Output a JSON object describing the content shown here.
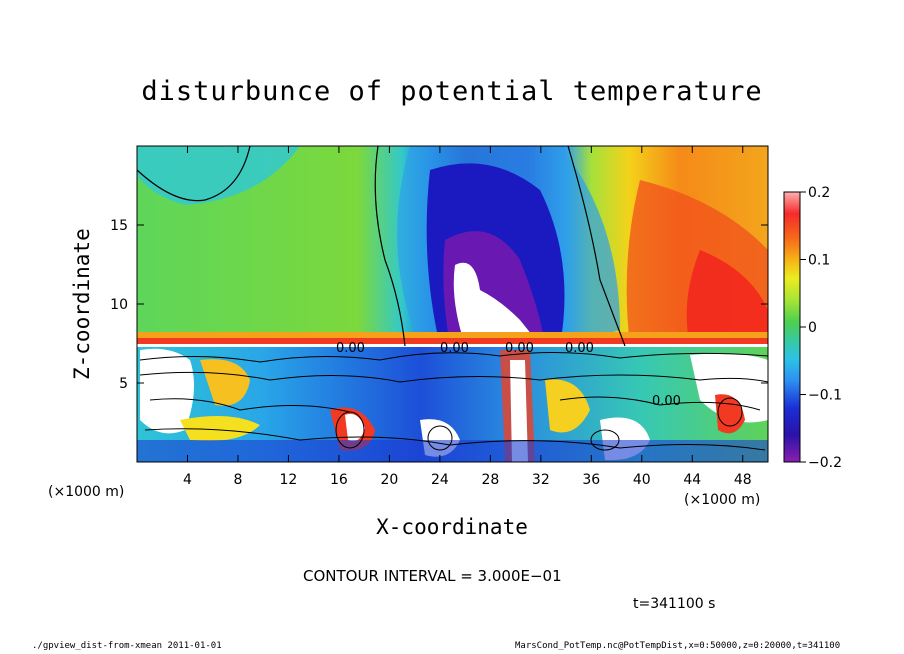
{
  "chart_data": {
    "type": "heatmap",
    "title": "disturbunce of potential temperature",
    "xlabel": "X-coordinate",
    "ylabel": "Z-coordinate",
    "x_unit": "(×1000 m)",
    "xlim": [
      0,
      50
    ],
    "ylim": [
      0,
      20
    ],
    "x_ticks": [
      4,
      8,
      12,
      16,
      20,
      24,
      28,
      32,
      36,
      40,
      44,
      48
    ],
    "y_ticks": [
      5,
      10,
      15
    ],
    "colorbar": {
      "range": [
        -0.2,
        0.2
      ],
      "ticks": [
        0.2,
        0.1,
        0,
        -0.1,
        -0.2
      ],
      "tick_labels": [
        "0.2",
        "0.1",
        "0",
        "−0.1",
        "−0.2"
      ]
    },
    "contour_labels": [
      "0.00",
      "0.00",
      "0.00",
      "0.00",
      "0.00"
    ],
    "contour_interval_text": "CONTOUR INTERVAL = 3.000E−01",
    "time_text": "t=341100 s"
  },
  "footer": {
    "left": "./gpview_dist-from-xmean  2011-01-01",
    "right": "MarsCond_PotTemp.nc@PotTempDist,x=0:50000,z=0:20000,t=341100"
  }
}
